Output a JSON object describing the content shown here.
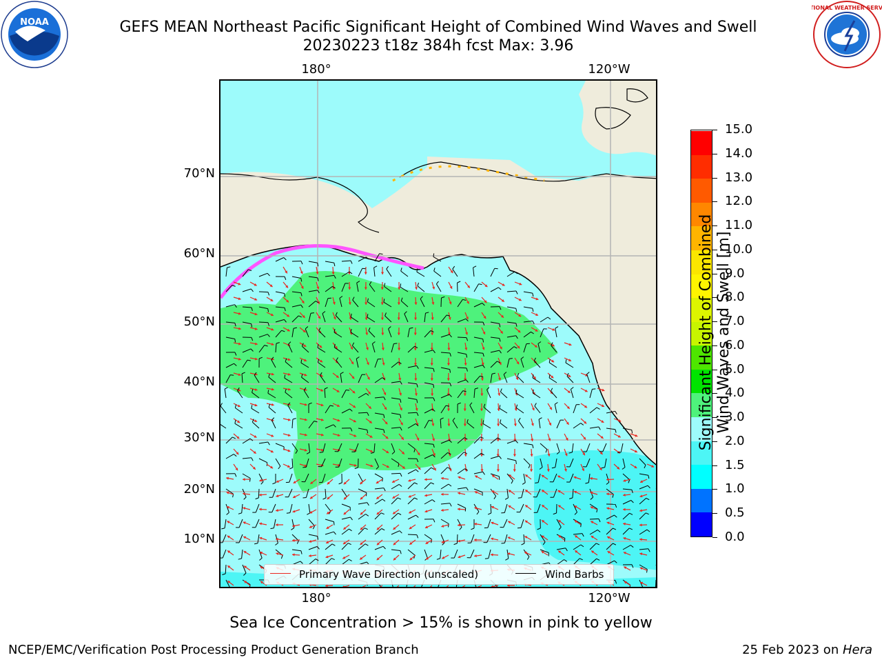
{
  "header": {
    "title_line1": "GEFS MEAN Northeast Pacific Significant Height of Combined Wind Waves and Swell",
    "title_line2": "20230223 t18z 384h fcst   Max: 3.96"
  },
  "logos": {
    "left": "noaa-logo",
    "right": "nws-logo",
    "left_text": "NOAA",
    "right_text": "NATIONAL WEATHER SERVICE"
  },
  "map": {
    "lat_labels": [
      "70°N",
      "60°N",
      "50°N",
      "40°N",
      "30°N",
      "20°N",
      "10°N"
    ],
    "lon_labels_top": [
      "180°",
      "120°W"
    ],
    "lon_labels_bottom": [
      "180°",
      "120°W"
    ],
    "colors": {
      "ocean_low": "#9dfbfb",
      "ocean_mid": "#4ef27c",
      "ocean_cyan": "#4df5f5",
      "land": "#efecdc",
      "ice_pink": "#ff55ff",
      "wave_arrow": "#e8261e",
      "wind_barb": "#000000",
      "grid": "#b4b4b4"
    }
  },
  "legend": {
    "wave_label": "Primary Wave Direction (unscaled)",
    "wind_label": "Wind Barbs"
  },
  "colorbar": {
    "label_line1": "Significant Height of Combined",
    "label_line2": "Wind Waves and Swell [m]",
    "ticks": [
      "0.0",
      "0.5",
      "1.0",
      "1.5",
      "2.0",
      "3.0",
      "4.0",
      "5.0",
      "6.0",
      "7.0",
      "8.0",
      "9.0",
      "10.0",
      "11.0",
      "12.0",
      "13.0",
      "14.0",
      "15.0"
    ],
    "colors": [
      "#0000ff",
      "#0073ff",
      "#00ffff",
      "#4df5f5",
      "#9dfbfb",
      "#4ef27c",
      "#00e400",
      "#4ee600",
      "#c8f500",
      "#ddf500",
      "#fff500",
      "#fbe600",
      "#ffb400",
      "#ff8700",
      "#ff5a00",
      "#ff2d00",
      "#ff0000"
    ]
  },
  "footer": {
    "note": "Sea Ice Concentration > 15% is shown in pink to yellow",
    "org": "NCEP/EMC/Verification Post Processing Product Generation Branch",
    "date": "25 Feb 2023 on ",
    "host": "Hera"
  }
}
